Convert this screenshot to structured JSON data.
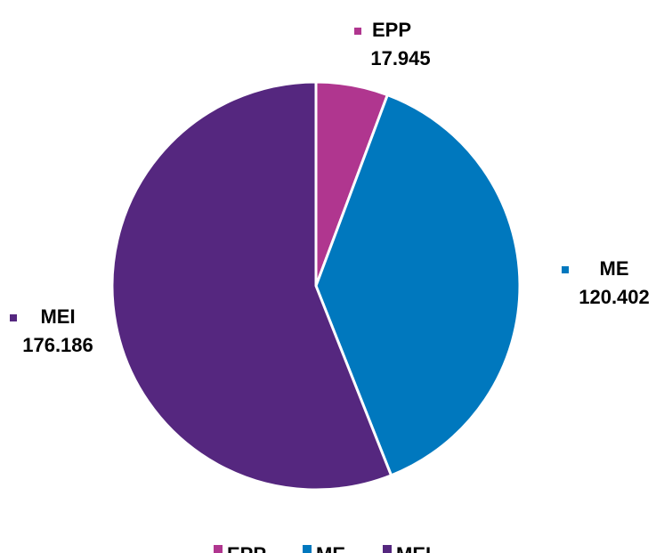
{
  "chart_data": {
    "type": "pie",
    "categories": [
      "EPP",
      "ME",
      "MEI"
    ],
    "values": [
      17.945,
      120.402,
      176.186
    ],
    "colors": [
      "#b0368f",
      "#0078be",
      "#55277f"
    ],
    "legend": "bottom"
  }
}
